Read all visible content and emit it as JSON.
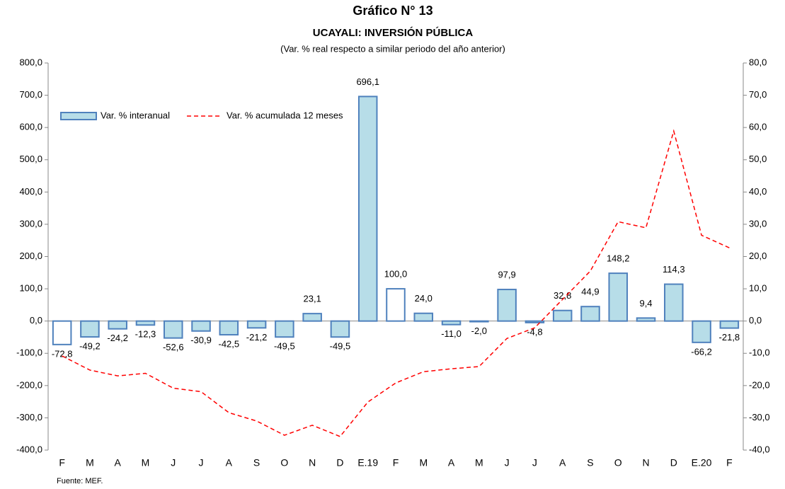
{
  "chart_data": {
    "type": "bar_line",
    "title": "Gráfico N° 13",
    "subtitle": "UCAYALI: INVERSIÓN PÚBLICA",
    "note": "(Var. % real respecto a similar periodo del año anterior)",
    "source": "Fuente: MEF.",
    "categories": [
      "F",
      "M",
      "A",
      "M",
      "J",
      "J",
      "A",
      "S",
      "O",
      "N",
      "D",
      "E.19",
      "F",
      "M",
      "A",
      "M",
      "J",
      "J",
      "A",
      "S",
      "O",
      "N",
      "D",
      "E.20",
      "F"
    ],
    "series": [
      {
        "name": "Var. % interanual",
        "type": "bar",
        "color": "#b7dde8",
        "edgecolor": "#4f81bd",
        "colors": [
          "#ffffff",
          "#b7dde8",
          "#b7dde8",
          "#b7dde8",
          "#b7dde8",
          "#b7dde8",
          "#b7dde8",
          "#b7dde8",
          "#b7dde8",
          "#b7dde8",
          "#b7dde8",
          "#b7dde8",
          "#ffffff",
          "#b7dde8",
          "#b7dde8",
          "#b7dde8",
          "#b7dde8",
          "#b7dde8",
          "#b7dde8",
          "#b7dde8",
          "#b7dde8",
          "#b7dde8",
          "#b7dde8",
          "#b7dde8",
          "#b7dde8"
        ],
        "values": [
          -72.8,
          -49.2,
          -24.2,
          -12.3,
          -52.6,
          -30.9,
          -42.5,
          -21.2,
          -49.5,
          23.1,
          -49.5,
          696.1,
          100.0,
          24.0,
          -11.0,
          -2.0,
          97.9,
          -4.8,
          32.8,
          44.9,
          148.2,
          9.4,
          114.3,
          -66.2,
          -21.8
        ],
        "value_labels": [
          "-72,8",
          "-49,2",
          "-24,2",
          "-12,3",
          "-52,6",
          "-30,9",
          "-42,5",
          "-21,2",
          "-49,5",
          "23,1",
          "-49,5",
          "696,1",
          "100,0",
          "24,0",
          "-11,0",
          "-2,0",
          "97,9",
          "-4,8",
          "32,8",
          "44,9",
          "148,2",
          "9,4",
          "114,3",
          "-66,2",
          "-21,8"
        ]
      },
      {
        "name": "Var. % acumulada 12 meses",
        "type": "line",
        "axis": "y2",
        "color": "#ff0000",
        "dashed": true,
        "values": [
          -10.8,
          -15.2,
          -17.0,
          -16.2,
          -20.8,
          -21.9,
          -28.4,
          -31.0,
          -35.4,
          -32.3,
          -35.8,
          -25.1,
          -19.2,
          -15.7,
          -14.8,
          -14.1,
          -5.4,
          -2.1,
          6.7,
          15.5,
          30.8,
          28.9,
          58.9,
          26.6,
          22.7
        ]
      }
    ],
    "ylim": [
      -400,
      800
    ],
    "yticks": [
      {
        "value": -400,
        "label": "-400,0"
      },
      {
        "value": -300,
        "label": "-300,0"
      },
      {
        "value": -200,
        "label": "-200,0"
      },
      {
        "value": -100,
        "label": "-100,0"
      },
      {
        "value": 0,
        "label": "0,0"
      },
      {
        "value": 100,
        "label": "100,0"
      },
      {
        "value": 200,
        "label": "200,0"
      },
      {
        "value": 300,
        "label": "300,0"
      },
      {
        "value": 400,
        "label": "400,0"
      },
      {
        "value": 500,
        "label": "500,0"
      },
      {
        "value": 600,
        "label": "600,0"
      },
      {
        "value": 700,
        "label": "700,0"
      },
      {
        "value": 800,
        "label": "800,0"
      }
    ],
    "y2lim": [
      -40,
      80
    ],
    "y2ticks": [
      {
        "value": -40,
        "label": "-40,0"
      },
      {
        "value": -30,
        "label": "-30,0"
      },
      {
        "value": -20,
        "label": "-20,0"
      },
      {
        "value": -10,
        "label": "-10,0"
      },
      {
        "value": 0,
        "label": "0,0"
      },
      {
        "value": 10,
        "label": "10,0"
      },
      {
        "value": 20,
        "label": "20,0"
      },
      {
        "value": 30,
        "label": "30,0"
      },
      {
        "value": 40,
        "label": "40,0"
      },
      {
        "value": 50,
        "label": "50,0"
      },
      {
        "value": 60,
        "label": "60,0"
      },
      {
        "value": 70,
        "label": "70,0"
      },
      {
        "value": 80,
        "label": "80,0"
      }
    ],
    "legend": "upper left"
  }
}
